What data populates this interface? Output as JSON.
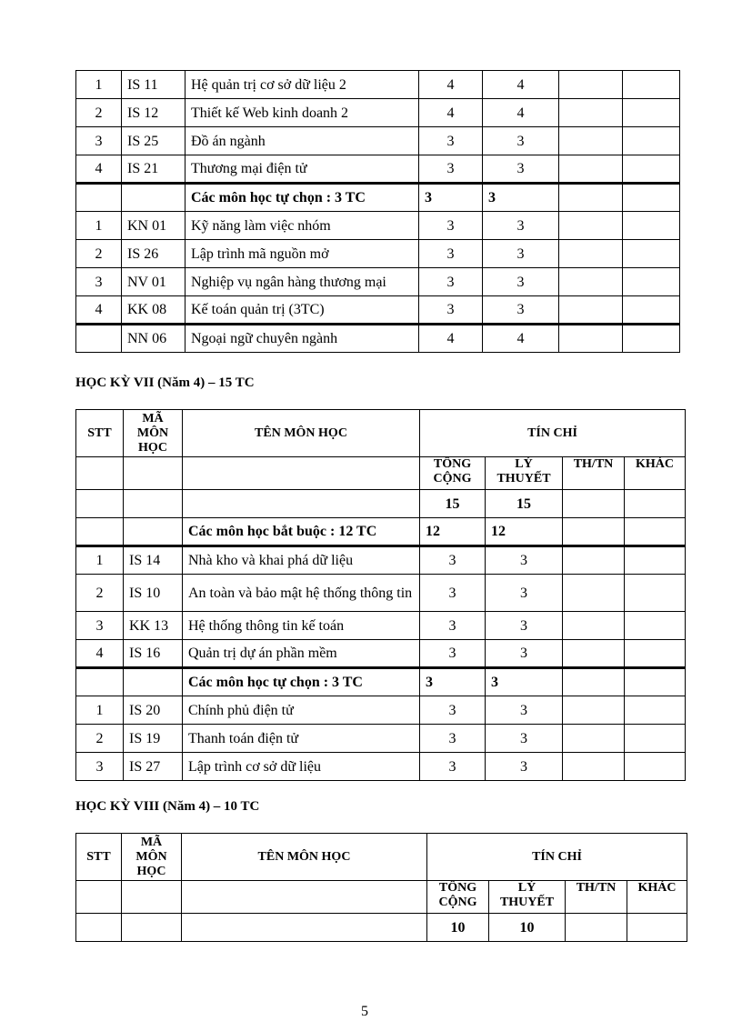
{
  "table1": {
    "rows": [
      {
        "stt": "1",
        "code": "IS 11",
        "name": "Hệ quản trị cơ sở dữ liệu 2",
        "total": "4",
        "theory": "4",
        "thtn": "",
        "other": ""
      },
      {
        "stt": "2",
        "code": "IS 12",
        "name": "Thiết kế Web kinh doanh 2",
        "total": "4",
        "theory": "4",
        "thtn": "",
        "other": ""
      },
      {
        "stt": "3",
        "code": "IS 25",
        "name": "Đồ án ngành",
        "total": "3",
        "theory": "3",
        "thtn": "",
        "other": ""
      },
      {
        "stt": "4",
        "code": "IS 21",
        "name": "Thương mại điện tử",
        "total": "3",
        "theory": "3",
        "thtn": "",
        "other": ""
      },
      {
        "stt": "",
        "code": "",
        "name": "Các môn học tự chọn : 3 TC",
        "total": "3",
        "theory": "3",
        "thtn": "",
        "other": "",
        "group": true,
        "thick": true
      },
      {
        "stt": "1",
        "code": "KN 01",
        "name": "Kỹ năng làm việc nhóm",
        "total": "3",
        "theory": "3",
        "thtn": "",
        "other": ""
      },
      {
        "stt": "2",
        "code": "IS 26",
        "name": "Lập trình mã nguồn mở",
        "total": "3",
        "theory": "3",
        "thtn": "",
        "other": ""
      },
      {
        "stt": "3",
        "code": "NV 01",
        "name": "Nghiệp vụ ngân hàng thương mại",
        "total": "3",
        "theory": "3",
        "thtn": "",
        "other": ""
      },
      {
        "stt": "4",
        "code": "KK 08",
        "name": "Kế toán quản trị (3TC)",
        "total": "3",
        "theory": "3",
        "thtn": "",
        "other": ""
      },
      {
        "stt": "",
        "code": "NN 06",
        "name": "Ngoại ngữ chuyên ngành",
        "total": "4",
        "theory": "4",
        "thtn": "",
        "other": "",
        "thick": true
      }
    ]
  },
  "semester7": {
    "heading": "HỌC KỲ VII (Năm 4) – 15 TC",
    "header": {
      "stt": "STT",
      "code": "MÃ MÔN HỌC",
      "name": "TÊN MÔN HỌC",
      "credits": "TÍN CHỈ",
      "total": "TỔNG CỘNG",
      "theory": "LÝ THUYẾT",
      "thtn": "TH/TN",
      "other": "KHÁC"
    },
    "sum": {
      "total": "15",
      "theory": "15"
    },
    "rows": [
      {
        "stt": "",
        "code": "",
        "name": "Các môn học bắt buộc : 12 TC",
        "total": "12",
        "theory": "12",
        "thtn": "",
        "other": "",
        "group": true
      },
      {
        "stt": "1",
        "code": "IS 14",
        "name": "Nhà kho và khai phá dữ liệu",
        "total": "3",
        "theory": "3",
        "thtn": "",
        "other": "",
        "thick": true
      },
      {
        "stt": "2",
        "code": "IS 10",
        "name": "An toàn và bảo mật hệ thống thông tin",
        "total": "3",
        "theory": "3",
        "thtn": "",
        "other": ""
      },
      {
        "stt": "3",
        "code": "KK 13",
        "name": "Hệ thống thông tin kế toán",
        "total": "3",
        "theory": "3",
        "thtn": "",
        "other": ""
      },
      {
        "stt": "4",
        "code": "IS 16",
        "name": "Quản trị dự án phần mềm",
        "total": "3",
        "theory": "3",
        "thtn": "",
        "other": ""
      },
      {
        "stt": "",
        "code": "",
        "name": "Các môn học tự chọn : 3 TC",
        "total": "3",
        "theory": "3",
        "thtn": "",
        "other": "",
        "group": true,
        "thick": true
      },
      {
        "stt": "1",
        "code": "IS 20",
        "name": "Chính phủ điện tử",
        "total": "3",
        "theory": "3",
        "thtn": "",
        "other": ""
      },
      {
        "stt": "2",
        "code": "IS 19",
        "name": "Thanh toán điện tử",
        "total": "3",
        "theory": "3",
        "thtn": "",
        "other": ""
      },
      {
        "stt": "3",
        "code": "IS 27",
        "name": "Lập trình cơ sở dữ liệu",
        "total": "3",
        "theory": "3",
        "thtn": "",
        "other": ""
      }
    ]
  },
  "semester8": {
    "heading": "HỌC KỲ VIII (Năm 4) – 10 TC",
    "header": {
      "stt": "STT",
      "code": "MÃ MÔN HỌC",
      "name": "TÊN MÔN HỌC",
      "credits": "TÍN CHỈ",
      "total": "TỔNG CỘNG",
      "theory": "LÝ THUYẾT",
      "thtn": "TH/TN",
      "other": "KHÁC"
    },
    "sum": {
      "total": "10",
      "theory": "10"
    },
    "rows": []
  },
  "page_number": "5"
}
